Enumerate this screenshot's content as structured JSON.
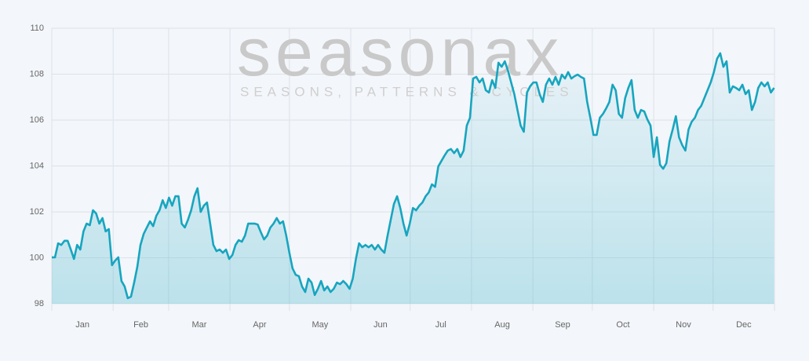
{
  "chart_data": {
    "type": "line",
    "watermark": {
      "title": "seasonax",
      "subtitle": "SEASONS, PATTERNS & CYCLES"
    },
    "x": [
      0,
      1.6,
      3.2,
      4.8,
      6.4,
      8,
      9.6,
      11.2,
      12.8,
      14.4,
      16,
      17.6,
      19.2,
      20.8,
      22.4,
      24,
      25.6,
      27.2,
      28.8,
      30.4,
      32,
      33.6,
      35.2,
      36.8,
      38.4,
      40,
      41.6,
      43.2,
      44.8,
      46.4,
      48,
      49.6,
      51.2,
      52.8,
      54.4,
      56,
      57.6,
      59.2,
      60.8,
      62.4,
      64,
      65.6,
      67.2,
      68.8,
      70.4,
      72,
      73.6,
      75.2,
      76.8,
      78.4,
      80,
      81.6,
      83.2,
      84.8,
      86.4,
      88,
      89.6,
      91.2,
      92.8,
      94.4,
      96,
      97.6,
      99.2,
      100.8,
      102.4,
      104,
      105.6,
      107.2,
      108.8,
      110.4,
      112,
      113.6,
      115.2,
      116.8,
      118.4,
      120,
      121.6,
      123.2,
      124.8,
      126.4,
      128,
      129.6,
      131.2,
      132.8,
      134.4,
      136,
      137.6,
      139.2,
      140.8,
      142.4,
      144,
      145.6,
      147.2,
      148.8,
      150.4,
      152,
      153.6,
      155.2,
      156.8,
      158.4,
      160,
      161.6,
      163.2,
      164.8,
      166.4,
      168,
      169.6,
      171.2,
      172.8,
      174.4,
      176,
      177.6,
      179.2,
      180.8,
      182.4,
      184,
      185.6,
      187.2,
      188.8,
      190.4,
      192,
      193.6,
      195.2,
      196.8,
      198.4,
      200,
      201.6,
      203.2,
      204.8,
      206.4,
      208,
      209.6,
      211.2,
      212.8,
      214.4,
      216,
      217.6,
      219.2,
      220.8,
      222.4,
      224,
      225.6,
      227.2,
      228.8,
      230.4,
      232,
      233.6,
      235.2,
      236.8,
      238.4,
      240,
      241.6,
      243.2,
      244.8,
      246.4,
      248,
      249.6,
      251.2,
      252.8,
      254.4,
      256,
      257.6,
      259.2,
      260.8,
      262.4,
      264,
      265.6,
      267.2,
      268.8,
      270.4,
      272,
      273.6,
      275.2,
      276.8,
      278.4,
      280,
      281.6,
      283.2,
      284.8,
      286.4,
      288,
      289.6,
      291.2,
      292.8,
      294.4,
      296,
      297.6,
      299.2,
      300.8,
      302.4,
      304,
      305.6,
      307.2,
      308.8,
      310.4,
      312,
      313.6,
      315.2,
      316.8,
      318.4,
      320,
      321.6,
      323.2,
      324.8,
      326.4,
      328,
      329.6,
      331.2,
      332.8,
      334.4,
      336,
      337.6,
      339.2,
      340.8,
      342.4,
      344,
      345.6,
      347.2,
      348.8,
      350.4,
      352,
      353.6,
      355.2,
      356.8,
      358.4,
      360,
      361.6,
      363.2,
      364.8
    ],
    "values": [
      100.02,
      100.02,
      100.63,
      100.56,
      100.74,
      100.74,
      100.36,
      99.95,
      100.56,
      100.36,
      101.15,
      101.49,
      101.42,
      102.07,
      101.93,
      101.49,
      101.73,
      101.15,
      101.25,
      99.68,
      99.88,
      100.02,
      98.99,
      98.75,
      98.24,
      98.31,
      98.92,
      99.61,
      100.56,
      101.04,
      101.32,
      101.59,
      101.38,
      101.83,
      102.07,
      102.51,
      102.17,
      102.62,
      102.27,
      102.68,
      102.68,
      101.49,
      101.32,
      101.66,
      102.07,
      102.68,
      103.03,
      102.0,
      102.27,
      102.41,
      101.49,
      100.56,
      100.29,
      100.36,
      100.22,
      100.36,
      99.95,
      100.12,
      100.56,
      100.77,
      100.7,
      100.97,
      101.49,
      101.49,
      101.49,
      101.45,
      101.11,
      100.8,
      100.97,
      101.32,
      101.49,
      101.73,
      101.49,
      101.59,
      100.97,
      100.22,
      99.54,
      99.26,
      99.2,
      98.75,
      98.51,
      99.09,
      98.92,
      98.38,
      98.65,
      98.99,
      98.58,
      98.75,
      98.51,
      98.65,
      98.92,
      98.85,
      98.99,
      98.85,
      98.65,
      99.09,
      99.95,
      100.63,
      100.46,
      100.56,
      100.46,
      100.56,
      100.36,
      100.56,
      100.36,
      100.22,
      100.97,
      101.66,
      102.34,
      102.68,
      102.17,
      101.49,
      100.97,
      101.49,
      102.17,
      102.07,
      102.27,
      102.41,
      102.68,
      102.85,
      103.2,
      103.09,
      103.98,
      104.22,
      104.46,
      104.67,
      104.74,
      104.56,
      104.74,
      104.39,
      104.67,
      105.76,
      106.1,
      107.81,
      107.88,
      107.64,
      107.81,
      107.3,
      107.2,
      107.74,
      107.4,
      108.5,
      108.32,
      108.56,
      108.15,
      107.64,
      107.13,
      106.44,
      105.76,
      105.49,
      107.2,
      107.47,
      107.64,
      107.64,
      107.13,
      106.79,
      107.54,
      107.81,
      107.54,
      107.88,
      107.54,
      107.98,
      107.81,
      108.09,
      107.81,
      107.91,
      107.98,
      107.88,
      107.81,
      106.79,
      106.1,
      105.35,
      105.35,
      106.1,
      106.27,
      106.51,
      106.79,
      107.54,
      107.3,
      106.27,
      106.1,
      106.96,
      107.4,
      107.74,
      106.44,
      106.1,
      106.44,
      106.38,
      106.03,
      105.76,
      104.39,
      105.25,
      104.05,
      103.88,
      104.12,
      105.08,
      105.59,
      106.17,
      105.25,
      104.91,
      104.67,
      105.59,
      105.93,
      106.1,
      106.44,
      106.62,
      106.96,
      107.3,
      107.64,
      108.09,
      108.67,
      108.91,
      108.32,
      108.56,
      107.2,
      107.47,
      107.4,
      107.3,
      107.54,
      107.13,
      107.3,
      106.44,
      106.79,
      107.4,
      107.64,
      107.47,
      107.64,
      107.2,
      107.4
    ],
    "color": "#17a5bf",
    "xlim": [
      0,
      365
    ],
    "ylim": [
      98,
      110
    ],
    "yticks": [
      98,
      100,
      102,
      104,
      106,
      108,
      110
    ],
    "xticks": [
      {
        "value": 15.5,
        "label": "Jan"
      },
      {
        "value": 45,
        "label": "Feb"
      },
      {
        "value": 74.5,
        "label": "Mar"
      },
      {
        "value": 105,
        "label": "Apr"
      },
      {
        "value": 135.5,
        "label": "May"
      },
      {
        "value": 166,
        "label": "Jun"
      },
      {
        "value": 196.5,
        "label": "Jul"
      },
      {
        "value": 227.5,
        "label": "Aug"
      },
      {
        "value": 258,
        "label": "Sep"
      },
      {
        "value": 288.5,
        "label": "Oct"
      },
      {
        "value": 319,
        "label": "Nov"
      },
      {
        "value": 349.5,
        "label": "Dec"
      }
    ],
    "xgrid": [
      0,
      31,
      59,
      90,
      120,
      151,
      181,
      212,
      243,
      273,
      304,
      334,
      365
    ],
    "grid": true,
    "fill": true
  }
}
